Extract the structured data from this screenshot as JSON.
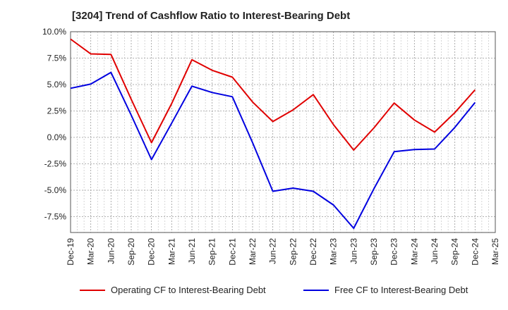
{
  "chart_data": {
    "type": "line",
    "title": "[3204]  Trend of Cashflow Ratio to Interest-Bearing Debt",
    "xlabel": "",
    "ylabel": "",
    "categories": [
      "Dec-19",
      "Mar-20",
      "Jun-20",
      "Sep-20",
      "Dec-20",
      "Mar-21",
      "Jun-21",
      "Sep-21",
      "Dec-21",
      "Mar-22",
      "Jun-22",
      "Sep-22",
      "Dec-22",
      "Mar-23",
      "Jun-23",
      "Sep-23",
      "Dec-23",
      "Mar-24",
      "Jun-24",
      "Sep-24",
      "Dec-24",
      "Mar-25"
    ],
    "ylim": [
      -9.0,
      10.0
    ],
    "yticks": [
      10.0,
      7.5,
      5.0,
      2.5,
      0.0,
      -2.5,
      -5.0,
      -7.5
    ],
    "ytick_labels": [
      "10.0%",
      "7.5%",
      "5.0%",
      "2.5%",
      "0.0%",
      "-2.5%",
      "-5.0%",
      "-7.5%"
    ],
    "grid": true,
    "legend_position": "bottom",
    "series": [
      {
        "name": "Operating CF to Interest-Bearing Debt",
        "color": "#e00000",
        "values": [
          9.3,
          7.9,
          7.85,
          3.6,
          -0.5,
          3.2,
          7.35,
          6.35,
          5.7,
          3.35,
          1.5,
          2.6,
          4.05,
          1.2,
          -1.2,
          0.9,
          3.25,
          1.65,
          0.5,
          2.35,
          4.5,
          null
        ]
      },
      {
        "name": "Free CF to Interest-Bearing Debt",
        "color": "#0000e0",
        "values": [
          4.65,
          5.05,
          6.15,
          2.1,
          -2.1,
          1.35,
          4.85,
          4.25,
          3.85,
          -0.5,
          -5.1,
          -4.8,
          -5.1,
          -6.4,
          -8.6,
          -4.85,
          -1.35,
          -1.15,
          -1.1,
          0.95,
          3.3,
          null
        ]
      }
    ]
  }
}
